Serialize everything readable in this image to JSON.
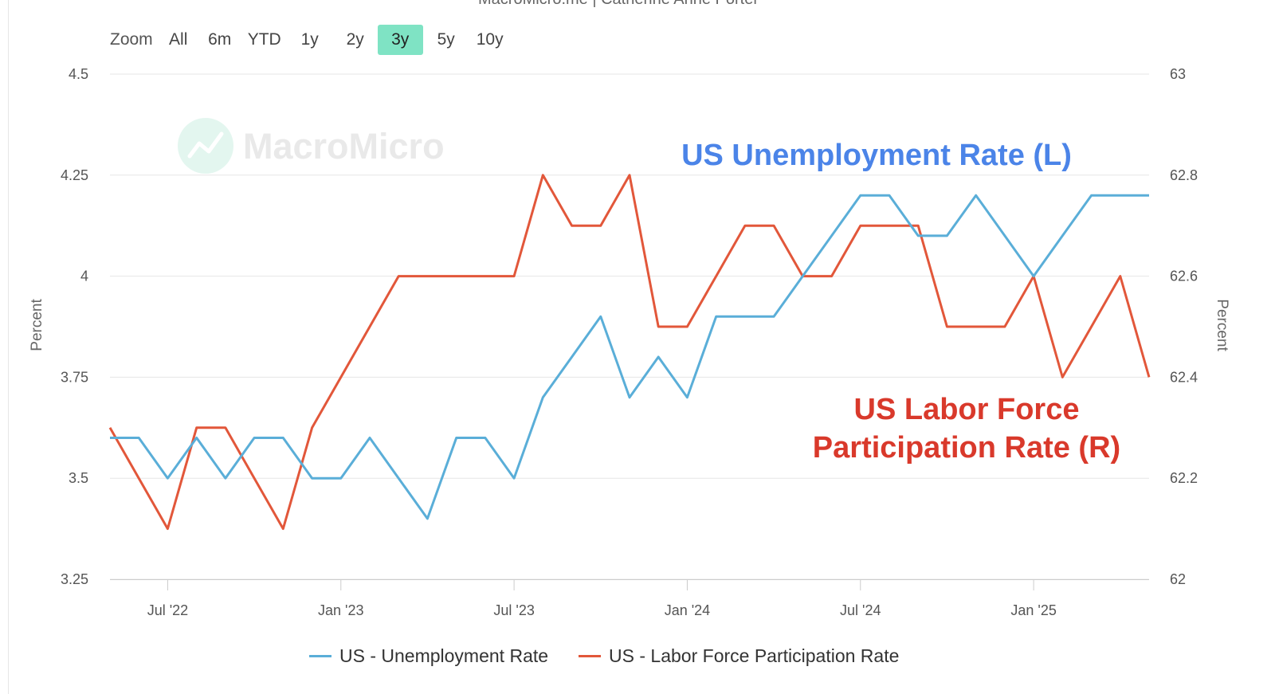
{
  "credit": "MacroMicro.me | Catherine Anne Porter",
  "watermark": "MacroMicro",
  "zoom": {
    "label": "Zoom",
    "buttons": [
      {
        "label": "All",
        "active": false
      },
      {
        "label": "6m",
        "active": false
      },
      {
        "label": "YTD",
        "active": false
      },
      {
        "label": "1y",
        "active": false
      },
      {
        "label": "2y",
        "active": false
      },
      {
        "label": "3y",
        "active": true
      },
      {
        "label": "5y",
        "active": false
      },
      {
        "label": "10y",
        "active": false
      }
    ]
  },
  "annotations": {
    "unemployment": "US Unemployment Rate (L)",
    "participation_line1": "US Labor Force",
    "participation_line2": "Participation Rate (R)"
  },
  "legend": {
    "unemployment": "US - Unemployment Rate",
    "participation": "US - Labor Force Participation Rate"
  },
  "colors": {
    "unemployment": "#5aaed8",
    "participation": "#e2573a",
    "active_zoom": "#7fe3c4"
  },
  "chart_data": {
    "type": "line",
    "x": [
      "2022-05",
      "2022-06",
      "2022-07",
      "2022-08",
      "2022-09",
      "2022-10",
      "2022-11",
      "2022-12",
      "2023-01",
      "2023-02",
      "2023-03",
      "2023-04",
      "2023-05",
      "2023-06",
      "2023-07",
      "2023-08",
      "2023-09",
      "2023-10",
      "2023-11",
      "2023-12",
      "2024-01",
      "2024-02",
      "2024-03",
      "2024-04",
      "2024-05",
      "2024-06",
      "2024-07",
      "2024-08",
      "2024-09",
      "2024-10",
      "2024-11",
      "2024-12",
      "2025-01",
      "2025-02",
      "2025-03",
      "2025-04",
      "2025-05"
    ],
    "series": [
      {
        "name": "US - Unemployment Rate",
        "axis": "left",
        "values": [
          3.6,
          3.6,
          3.5,
          3.6,
          3.5,
          3.6,
          3.6,
          3.5,
          3.5,
          3.6,
          3.5,
          3.4,
          3.6,
          3.6,
          3.5,
          3.7,
          3.8,
          3.9,
          3.7,
          3.8,
          3.7,
          3.9,
          3.9,
          3.9,
          4.0,
          4.1,
          4.2,
          4.2,
          4.1,
          4.1,
          4.2,
          4.1,
          4.0,
          4.1,
          4.2,
          4.2,
          4.2
        ]
      },
      {
        "name": "US - Labor Force Participation Rate",
        "axis": "right",
        "values": [
          62.3,
          62.2,
          62.1,
          62.3,
          62.3,
          62.2,
          62.1,
          62.3,
          62.4,
          62.5,
          62.6,
          62.6,
          62.6,
          62.6,
          62.6,
          62.8,
          62.7,
          62.7,
          62.8,
          62.5,
          62.5,
          62.6,
          62.7,
          62.7,
          62.6,
          62.6,
          62.7,
          62.7,
          62.7,
          62.5,
          62.5,
          62.5,
          62.6,
          62.4,
          62.5,
          62.6,
          62.4
        ]
      }
    ],
    "x_tick_labels": [
      "Jul '22",
      "Jan '23",
      "Jul '23",
      "Jan '24",
      "Jul '24",
      "Jan '25"
    ],
    "x_tick_dates": [
      "2022-07",
      "2023-01",
      "2023-07",
      "2024-01",
      "2024-07",
      "2025-01"
    ],
    "y_left": {
      "label": "Percent",
      "range": [
        3.25,
        4.5
      ],
      "ticks": [
        "3.25",
        "3.5",
        "3.75",
        "4",
        "4.25",
        "4.5"
      ]
    },
    "y_right": {
      "label": "Percent",
      "range": [
        62,
        63
      ],
      "ticks": [
        "62",
        "62.2",
        "62.4",
        "62.6",
        "62.8",
        "63"
      ]
    },
    "grid": true,
    "legend_position": "bottom"
  }
}
